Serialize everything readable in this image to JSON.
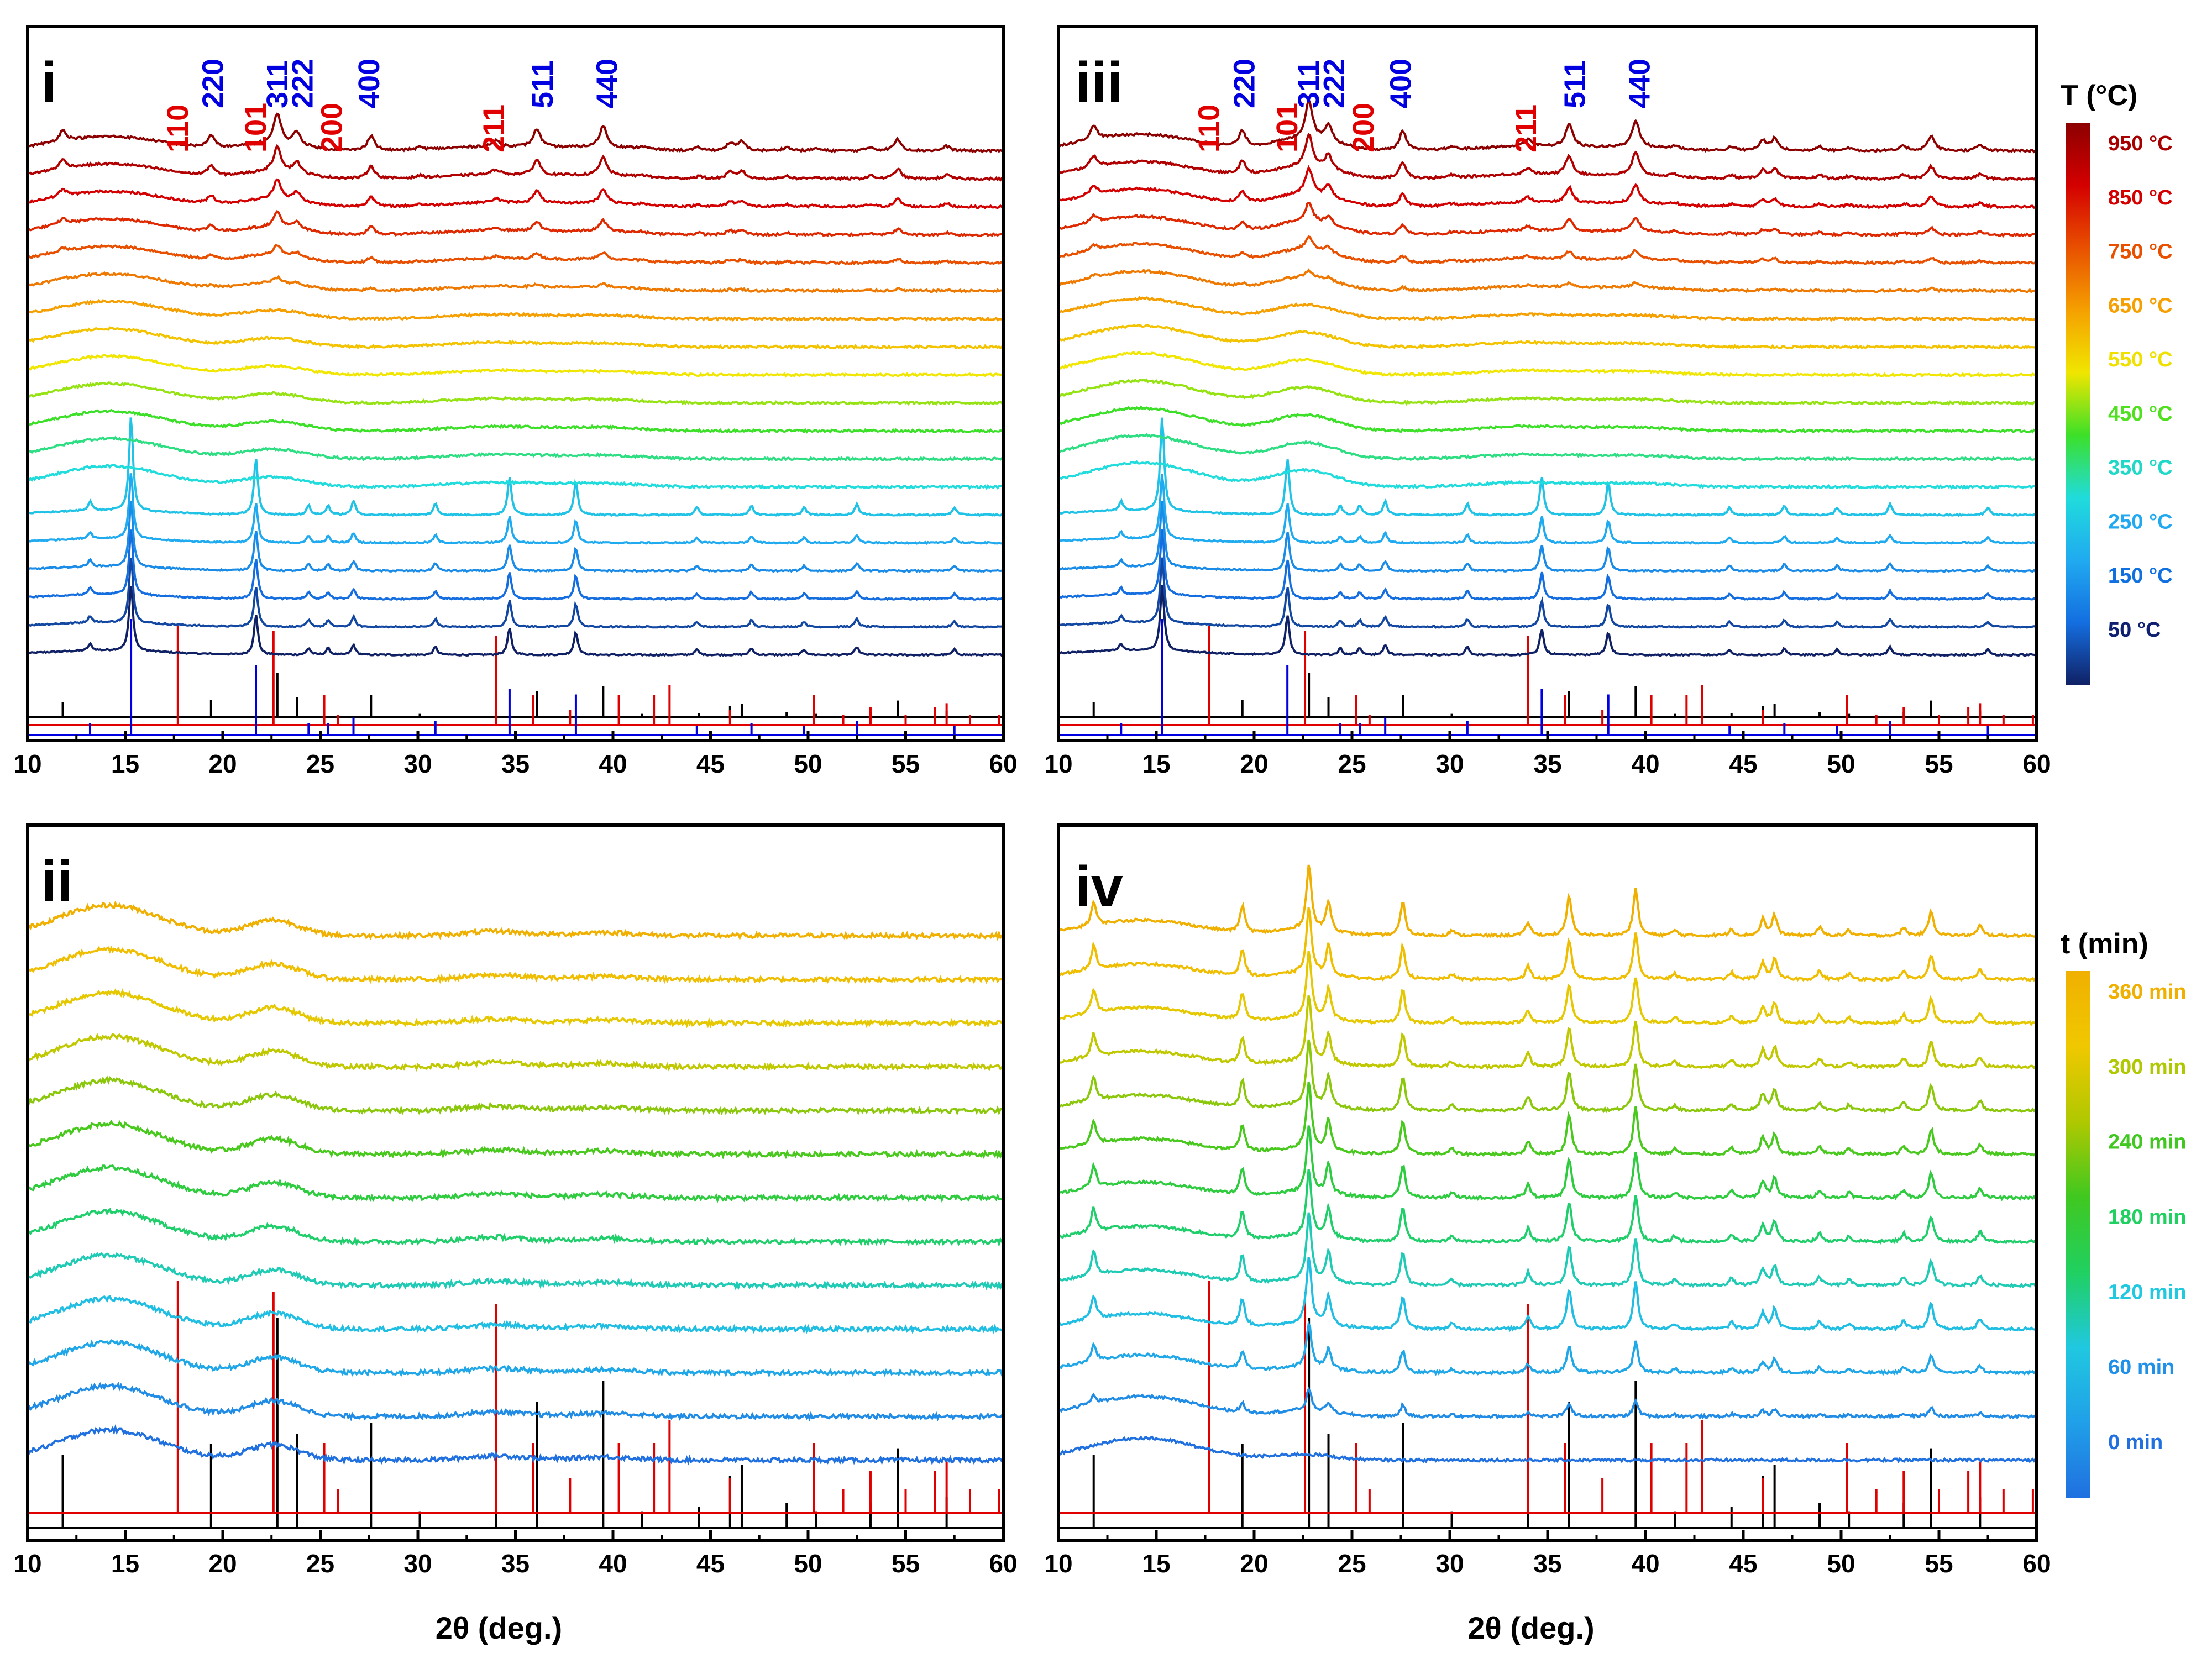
{
  "chart_data": [
    {
      "type": "line",
      "panel": "i",
      "xlabel": "",
      "xlim": [
        10,
        60
      ],
      "xticks": [
        10,
        15,
        20,
        25,
        30,
        35,
        40,
        45,
        50,
        55,
        60
      ],
      "hkl_labels": [
        {
          "text": "110",
          "x": 17.7,
          "color": "#e00000"
        },
        {
          "text": "220",
          "x": 19.5,
          "color": "#0000e0"
        },
        {
          "text": "101",
          "x": 21.7,
          "color": "#e00000"
        },
        {
          "text": "311",
          "x": 22.8,
          "color": "#0000e0"
        },
        {
          "text": "222",
          "x": 24.1,
          "color": "#0000e0"
        },
        {
          "text": "200",
          "x": 25.6,
          "color": "#e00000"
        },
        {
          "text": "400",
          "x": 27.5,
          "color": "#0000e0"
        },
        {
          "text": "211",
          "x": 33.9,
          "color": "#e00000"
        },
        {
          "text": "511",
          "x": 36.4,
          "color": "#0000e0"
        },
        {
          "text": "440",
          "x": 39.7,
          "color": "#0000e0"
        }
      ],
      "series_count": 19,
      "temperatures_C": [
        50,
        100,
        150,
        200,
        250,
        300,
        350,
        400,
        450,
        500,
        550,
        600,
        650,
        700,
        750,
        800,
        850,
        900,
        950
      ]
    },
    {
      "type": "line",
      "panel": "ii",
      "xlabel": "2θ (deg.)",
      "xlim": [
        10,
        60
      ],
      "xticks": [
        10,
        15,
        20,
        25,
        30,
        35,
        40,
        45,
        50,
        55,
        60
      ],
      "series_count": 13,
      "times_min": [
        0,
        30,
        60,
        90,
        120,
        150,
        180,
        210,
        240,
        270,
        300,
        330,
        360
      ]
    },
    {
      "type": "line",
      "panel": "iii",
      "xlabel": "",
      "xlim": [
        10,
        60
      ],
      "xticks": [
        10,
        15,
        20,
        25,
        30,
        35,
        40,
        45,
        50,
        55,
        60
      ],
      "hkl_labels": [
        {
          "text": "110",
          "x": 17.7,
          "color": "#e00000"
        },
        {
          "text": "220",
          "x": 19.5,
          "color": "#0000e0"
        },
        {
          "text": "101",
          "x": 21.7,
          "color": "#e00000"
        },
        {
          "text": "311",
          "x": 22.8,
          "color": "#0000e0"
        },
        {
          "text": "222",
          "x": 24.1,
          "color": "#0000e0"
        },
        {
          "text": "200",
          "x": 25.6,
          "color": "#e00000"
        },
        {
          "text": "400",
          "x": 27.5,
          "color": "#0000e0"
        },
        {
          "text": "211",
          "x": 33.9,
          "color": "#e00000"
        },
        {
          "text": "511",
          "x": 36.4,
          "color": "#0000e0"
        },
        {
          "text": "440",
          "x": 39.7,
          "color": "#0000e0"
        }
      ],
      "series_count": 19,
      "temperatures_C": [
        50,
        100,
        150,
        200,
        250,
        300,
        350,
        400,
        450,
        500,
        550,
        600,
        650,
        700,
        750,
        800,
        850,
        900,
        950
      ]
    },
    {
      "type": "line",
      "panel": "iv",
      "xlabel": "2θ (deg.)",
      "xlim": [
        10,
        60
      ],
      "xticks": [
        10,
        15,
        20,
        25,
        30,
        35,
        40,
        45,
        50,
        55,
        60
      ],
      "series_count": 13,
      "times_min": [
        0,
        30,
        60,
        90,
        120,
        150,
        180,
        210,
        240,
        270,
        300,
        330,
        360
      ]
    }
  ],
  "reference_patterns": {
    "black": {
      "color": "#000000",
      "peaks": [
        [
          11.8,
          0.35
        ],
        [
          19.4,
          0.4
        ],
        [
          22.8,
          1.0
        ],
        [
          23.8,
          0.45
        ],
        [
          27.6,
          0.5
        ],
        [
          30.1,
          0.08
        ],
        [
          34.0,
          0.2
        ],
        [
          36.1,
          0.6
        ],
        [
          39.5,
          0.7
        ],
        [
          41.5,
          0.08
        ],
        [
          44.4,
          0.1
        ],
        [
          46.0,
          0.25
        ],
        [
          46.6,
          0.3
        ],
        [
          48.9,
          0.12
        ],
        [
          50.4,
          0.08
        ],
        [
          53.2,
          0.12
        ],
        [
          54.6,
          0.38
        ],
        [
          57.1,
          0.15
        ]
      ]
    },
    "red": {
      "color": "#e00000",
      "peaks": [
        [
          17.7,
          1.0
        ],
        [
          22.6,
          0.95
        ],
        [
          25.2,
          0.3
        ],
        [
          25.9,
          0.1
        ],
        [
          34.0,
          0.9
        ],
        [
          35.9,
          0.3
        ],
        [
          37.8,
          0.15
        ],
        [
          40.3,
          0.3
        ],
        [
          42.1,
          0.3
        ],
        [
          42.9,
          0.4
        ],
        [
          46.0,
          0.15
        ],
        [
          50.3,
          0.3
        ],
        [
          51.8,
          0.1
        ],
        [
          53.2,
          0.18
        ],
        [
          55.0,
          0.1
        ],
        [
          56.5,
          0.18
        ],
        [
          57.1,
          0.22
        ],
        [
          58.3,
          0.1
        ],
        [
          59.8,
          0.1
        ]
      ]
    },
    "blue": {
      "color": "#0000e0",
      "peaks": [
        [
          13.2,
          0.1
        ],
        [
          15.3,
          1.0
        ],
        [
          21.7,
          0.6
        ],
        [
          24.4,
          0.1
        ],
        [
          25.4,
          0.1
        ],
        [
          26.7,
          0.15
        ],
        [
          30.9,
          0.12
        ],
        [
          34.7,
          0.4
        ],
        [
          38.1,
          0.35
        ],
        [
          44.3,
          0.08
        ],
        [
          47.1,
          0.1
        ],
        [
          49.8,
          0.08
        ],
        [
          52.5,
          0.12
        ],
        [
          57.5,
          0.08
        ]
      ]
    }
  },
  "colorbars": [
    {
      "title": "T (°C)",
      "labels": [
        {
          "text": "950 °C",
          "color": "#a80000"
        },
        {
          "text": "850 °C",
          "color": "#d40000"
        },
        {
          "text": "750 °C",
          "color": "#e85000"
        },
        {
          "text": "650 °C",
          "color": "#f5a000"
        },
        {
          "text": "550 °C",
          "color": "#f0e000"
        },
        {
          "text": "450 °C",
          "color": "#50e020"
        },
        {
          "text": "350 °C",
          "color": "#20d8c8"
        },
        {
          "text": "250 °C",
          "color": "#20a8f0"
        },
        {
          "text": "150 °C",
          "color": "#1070e0"
        },
        {
          "text": "50 °C",
          "color": "#102070"
        }
      ]
    },
    {
      "title": "t (min)",
      "labels": [
        {
          "text": "360 min",
          "color": "#f0b000"
        },
        {
          "text": "300 min",
          "color": "#b0c800"
        },
        {
          "text": "240 min",
          "color": "#40c820"
        },
        {
          "text": "180 min",
          "color": "#20d060"
        },
        {
          "text": "120 min",
          "color": "#20c8e0"
        },
        {
          "text": "60 min",
          "color": "#2090e8"
        },
        {
          "text": "0 min",
          "color": "#2070e0"
        }
      ]
    }
  ]
}
